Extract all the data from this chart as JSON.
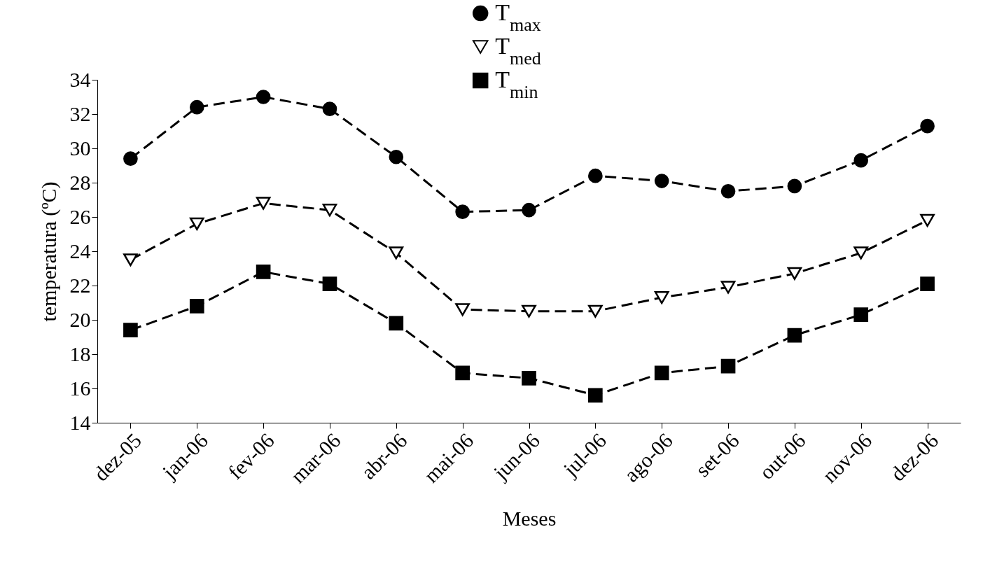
{
  "chart_data": {
    "type": "line",
    "xlabel": "Meses",
    "ylabel": "temperatura (ºC)",
    "categories": [
      "dez-05",
      "jan-06",
      "fev-06",
      "mar-06",
      "abr-06",
      "mai-06",
      "jun-06",
      "jul-06",
      "ago-06",
      "set-06",
      "out-06",
      "nov-06",
      "dez-06"
    ],
    "series": [
      {
        "name": "T$_{max}$",
        "color": "#000000",
        "marker": "circle",
        "values": [
          29.4,
          32.4,
          33.0,
          32.3,
          29.5,
          26.3,
          26.4,
          28.4,
          28.1,
          27.5,
          27.8,
          29.3,
          31.3
        ]
      },
      {
        "name": "T$_{med}$",
        "color": "#000000",
        "marker": "triangle",
        "values": [
          23.5,
          25.6,
          26.8,
          26.4,
          23.9,
          20.6,
          20.5,
          20.5,
          21.3,
          21.9,
          22.7,
          23.9,
          25.8
        ]
      },
      {
        "name": "T$_{min}$",
        "color": "#000000",
        "marker": "square",
        "values": [
          19.4,
          20.8,
          22.8,
          22.1,
          19.8,
          16.9,
          16.6,
          15.6,
          16.9,
          17.3,
          19.1,
          20.3,
          22.1
        ]
      }
    ],
    "ylim": [
      14,
      34
    ],
    "yticks": [
      14,
      16,
      18,
      20,
      22,
      24,
      26,
      28,
      30,
      32,
      34
    ],
    "grid": false,
    "legend": "top",
    "line_style": "dashed"
  }
}
